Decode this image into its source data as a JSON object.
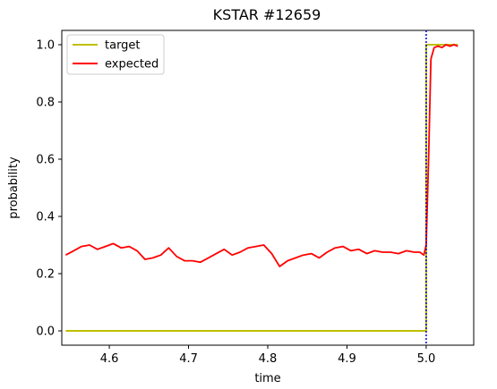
{
  "chart_data": {
    "type": "line",
    "title": "KSTAR #12659",
    "xlabel": "time",
    "ylabel": "probability",
    "xlim": [
      4.54,
      5.06
    ],
    "ylim": [
      -0.05,
      1.05
    ],
    "xticks": [
      "4.6",
      "4.7",
      "4.8",
      "4.9",
      "5.0"
    ],
    "yticks": [
      "0.0",
      "0.2",
      "0.4",
      "0.6",
      "0.8",
      "1.0"
    ],
    "grid": false,
    "legend_position": "top-left",
    "vline": {
      "x": 5.0,
      "color": "#0000cc",
      "style": "dotted"
    },
    "series": [
      {
        "name": "target",
        "color": "#bfbf00",
        "x": [
          4.545,
          5.0,
          5.0,
          5.04
        ],
        "y": [
          0.0,
          0.0,
          1.0,
          1.0
        ]
      },
      {
        "name": "expected",
        "color": "#ff0000",
        "x": [
          4.545,
          4.555,
          4.565,
          4.575,
          4.585,
          4.595,
          4.605,
          4.615,
          4.625,
          4.635,
          4.645,
          4.655,
          4.665,
          4.675,
          4.685,
          4.695,
          4.705,
          4.715,
          4.725,
          4.735,
          4.745,
          4.755,
          4.765,
          4.775,
          4.785,
          4.795,
          4.805,
          4.815,
          4.825,
          4.835,
          4.845,
          4.855,
          4.865,
          4.875,
          4.885,
          4.895,
          4.905,
          4.915,
          4.925,
          4.935,
          4.945,
          4.955,
          4.965,
          4.975,
          4.985,
          4.992,
          4.997,
          5.0,
          5.003,
          5.006,
          5.01,
          5.015,
          5.02,
          5.025,
          5.03,
          5.035,
          5.04
        ],
        "y": [
          0.265,
          0.28,
          0.295,
          0.3,
          0.285,
          0.295,
          0.305,
          0.29,
          0.295,
          0.28,
          0.25,
          0.255,
          0.265,
          0.29,
          0.26,
          0.245,
          0.245,
          0.24,
          0.255,
          0.27,
          0.285,
          0.265,
          0.275,
          0.29,
          0.295,
          0.3,
          0.27,
          0.225,
          0.245,
          0.255,
          0.265,
          0.27,
          0.255,
          0.275,
          0.29,
          0.295,
          0.28,
          0.285,
          0.27,
          0.28,
          0.275,
          0.275,
          0.27,
          0.28,
          0.275,
          0.275,
          0.265,
          0.3,
          0.6,
          0.95,
          0.99,
          0.995,
          0.99,
          1.0,
          0.995,
          1.0,
          0.995
        ]
      }
    ]
  }
}
